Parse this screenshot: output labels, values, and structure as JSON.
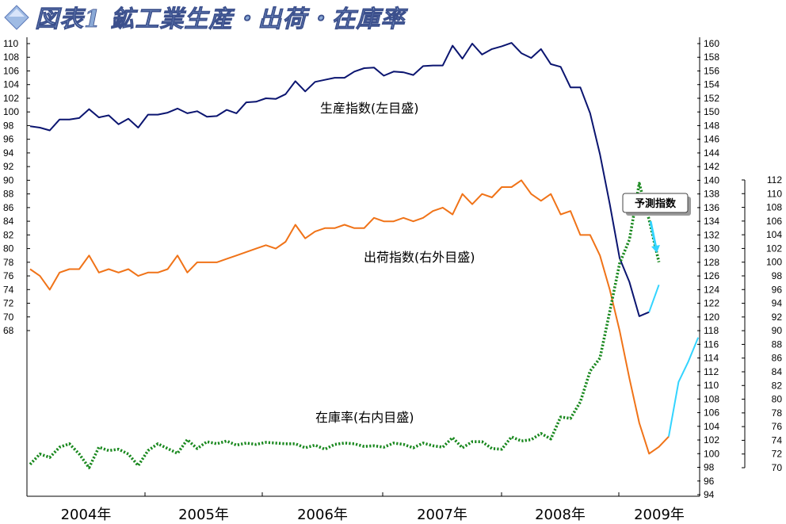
{
  "chart_data": {
    "type": "line",
    "title": "図表1 鉱工業生産・出荷・在庫率",
    "x_labels": [
      "2004年",
      "2005年",
      "2006年",
      "2007年",
      "2008年",
      "2009年"
    ],
    "callout": "予測指数",
    "colors": {
      "production": "#0b1570",
      "shipment": "#f07318",
      "inventory": "#19881e",
      "forecast": "#33d4ff",
      "title_icon": "#7fa4d8"
    },
    "axes": {
      "left": {
        "min": 68,
        "max": 110,
        "step": 2
      },
      "right_outer": {
        "min": 94,
        "max": 160,
        "step": 2
      },
      "right_inner": {
        "min": 70,
        "max": 112,
        "step": 2
      }
    },
    "series": [
      {
        "name": "生産指数(左目盛)",
        "axis": "left",
        "style": "solid",
        "values": [
          97.9,
          97.7,
          97.3,
          98.9,
          98.9,
          99.1,
          100.4,
          99.2,
          99.5,
          98.2,
          99,
          97.7,
          99.6,
          99.6,
          99.9,
          100.5,
          99.8,
          100.1,
          99.3,
          99.4,
          100.3,
          99.8,
          101.4,
          101.5,
          102,
          101.9,
          102.6,
          104.5,
          103,
          104.4,
          104.7,
          105,
          105,
          105.9,
          106.4,
          106.5,
          105.3,
          105.9,
          105.8,
          105.4,
          106.7,
          106.8,
          106.8,
          109.7,
          107.8,
          110,
          108.4,
          109.2,
          109.6,
          110.1,
          108.6,
          107.9,
          109.2,
          107,
          106.6,
          103.6,
          103.6,
          99.8,
          93.8,
          86.5,
          78.6,
          75.1,
          70.1,
          70.7
        ],
        "forecast_values": [
          70.7,
          74.7
        ]
      },
      {
        "name": "出荷指数(右外目盛)",
        "axis": "right_outer",
        "style": "solid",
        "values": [
          127,
          126,
          124,
          126.5,
          127,
          127,
          129,
          126.5,
          127,
          126.5,
          127,
          126,
          126.5,
          126.5,
          127,
          129,
          126.5,
          128,
          128,
          128,
          128.5,
          129,
          129.5,
          130,
          130.5,
          130,
          131,
          133.5,
          131.5,
          132.5,
          133,
          133,
          133.5,
          133,
          133,
          134.5,
          134,
          134,
          134.5,
          134,
          134.5,
          135.5,
          136,
          135,
          138,
          136.5,
          138,
          137.5,
          139,
          139,
          140,
          138,
          137,
          138,
          135,
          135.5,
          132,
          132,
          129,
          124,
          118,
          111,
          104.5,
          100,
          101,
          102.5
        ],
        "forecast_values": [
          102.5,
          110.5,
          113.5,
          117
        ]
      },
      {
        "name": "在庫率(右内目盛)",
        "axis": "right_inner",
        "style": "dotted",
        "values": [
          70.5,
          72,
          71.5,
          73,
          73.5,
          72,
          70,
          73,
          72.5,
          72.7,
          72,
          70.3,
          72.5,
          73.5,
          72.8,
          72.1,
          74.1,
          72.8,
          73.8,
          73.5,
          73.9,
          73.3,
          73.6,
          73.4,
          73.7,
          73.6,
          73.5,
          73.5,
          72.9,
          73.3,
          72.7,
          73.4,
          73.6,
          73.5,
          73.1,
          73.2,
          73,
          73.6,
          73.4,
          72.9,
          73.6,
          73.2,
          73,
          74.4,
          72.9,
          73.8,
          73.8,
          72.8,
          72.7,
          74.5,
          73.9,
          74.1,
          75,
          74.2,
          77.4,
          77.2,
          79.6,
          84.1,
          86,
          92.8,
          99.8,
          103.3,
          111.5,
          106.2,
          100
        ]
      }
    ]
  }
}
